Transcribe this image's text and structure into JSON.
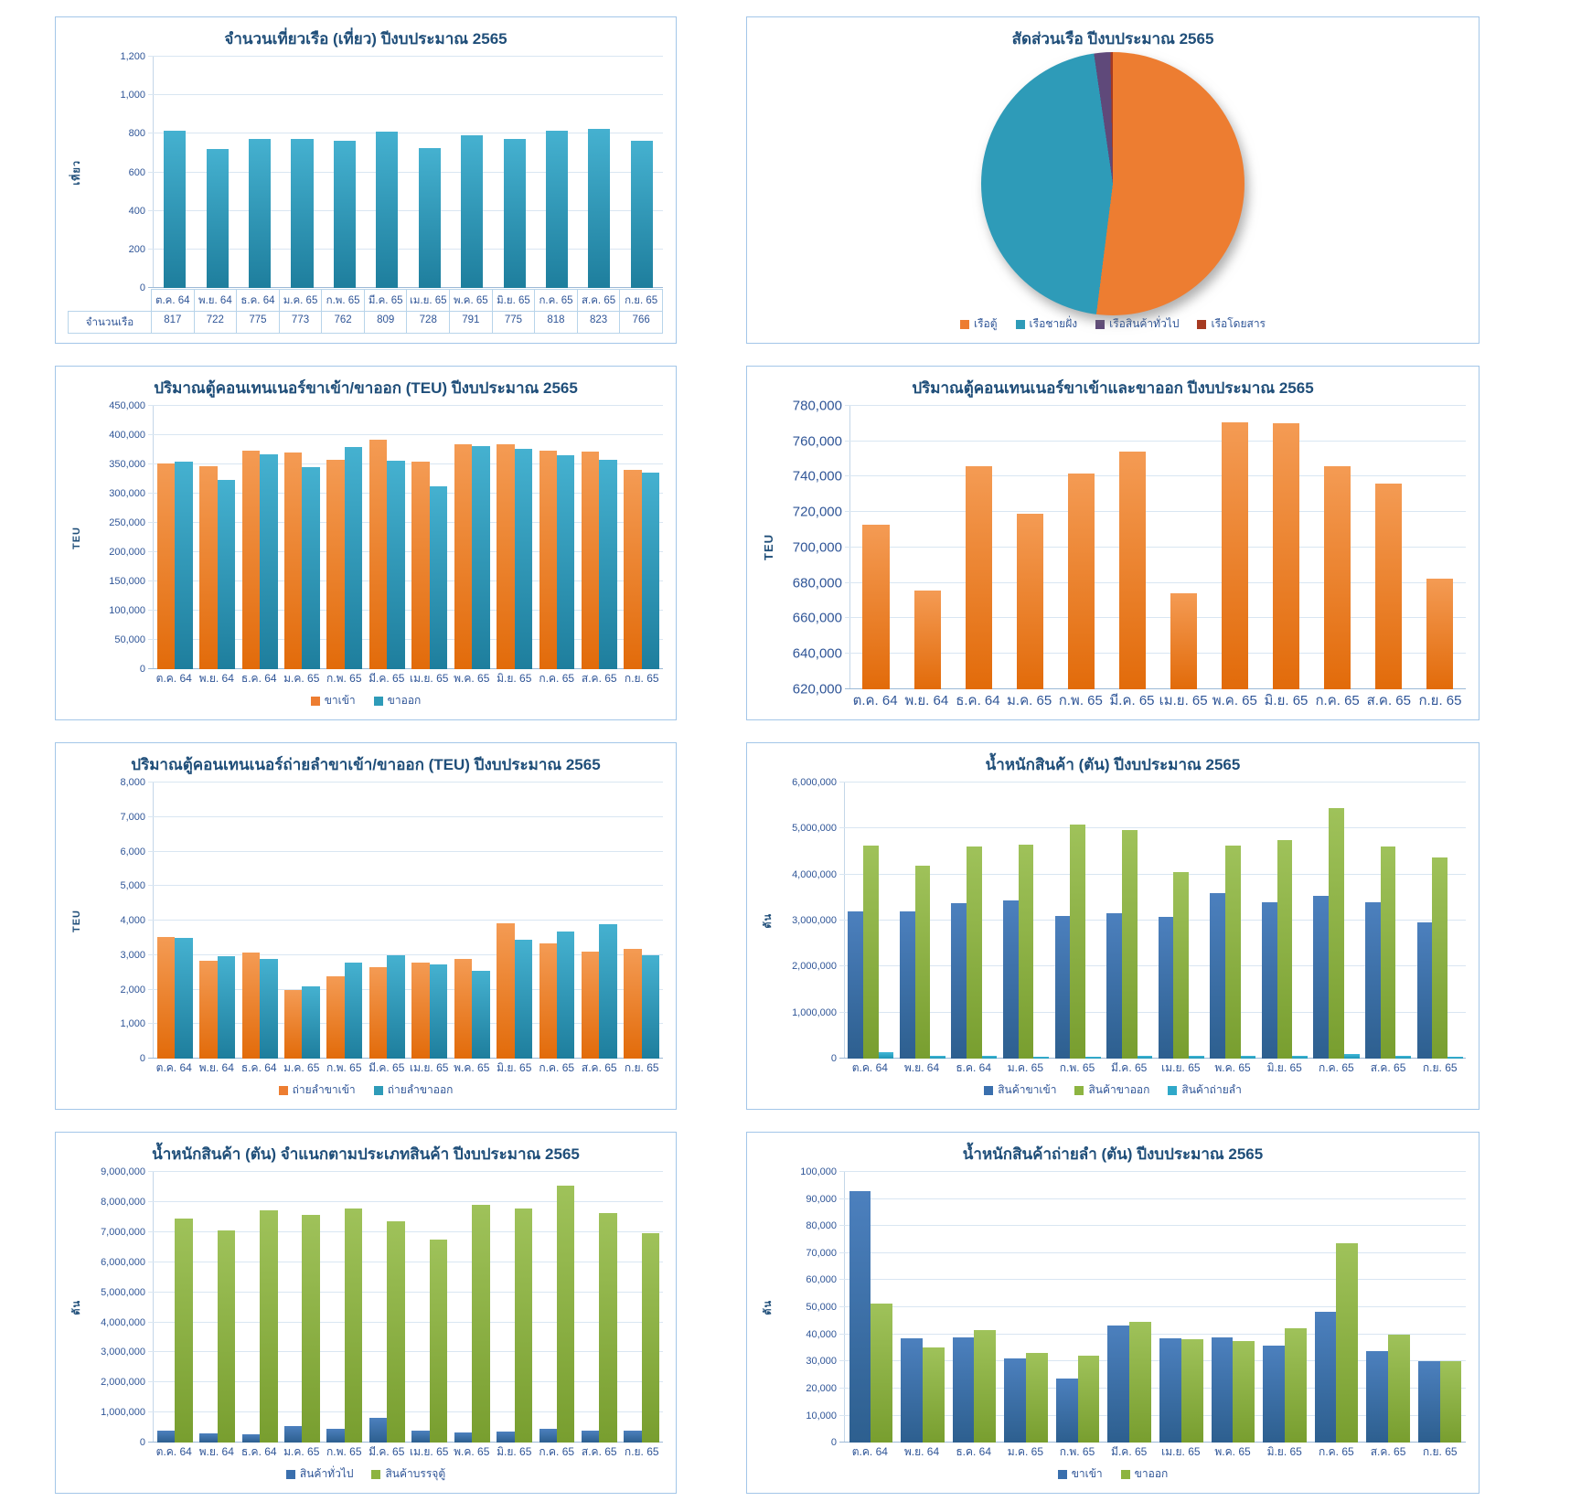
{
  "colors": {
    "accent_orange": "#ED7D31",
    "accent_teal": "#2E9BB8",
    "accent_blue": "#3A6FAD",
    "accent_green": "#8DB441",
    "accent_cyan": "#2FA8C9",
    "accent_purple": "#5F497A",
    "accent_dark_red": "#A63A21",
    "title_text": "#1F4E79",
    "axis_text": "#2F5597",
    "gridline": "#D9E6F2",
    "panel_border": "#A3C6E8"
  },
  "chart_data": [
    {
      "id": "ship-trips",
      "type": "bar",
      "title": "จำนวนเที่ยวเรือ (เที่ยว) ปีงบประมาณ 2565",
      "ylabel": "เที่ยว",
      "ylim": [
        0,
        1200
      ],
      "ystep": 200,
      "grid": true,
      "show_table": true,
      "show_legend": false,
      "categories": [
        "ต.ค. 64",
        "พ.ย. 64",
        "ธ.ค. 64",
        "ม.ค. 65",
        "ก.พ. 65",
        "มี.ค. 65",
        "เม.ย. 65",
        "พ.ค. 65",
        "มิ.ย. 65",
        "ก.ค. 65",
        "ส.ค. 65",
        "ก.ย. 65"
      ],
      "series": [
        {
          "name": "จำนวนเรือ",
          "color_key": "teal",
          "values": [
            817,
            722,
            775,
            773,
            762,
            809,
            728,
            791,
            775,
            818,
            823,
            766
          ]
        }
      ]
    },
    {
      "id": "ship-share",
      "type": "pie",
      "title": "สัดส่วนเรือ ปีงบประมาณ 2565",
      "legend_position": "bottom",
      "slices": [
        {
          "label": "เรือตู้",
          "color": "#ED7D31",
          "pct": 52.0
        },
        {
          "label": "เรือชายฝั่ง",
          "color": "#2E9BB8",
          "pct": 45.7
        },
        {
          "label": "เรือสินค้าทั่วไป",
          "color": "#5F497A",
          "pct": 2.0
        },
        {
          "label": "เรือโดยสาร",
          "color": "#A63A21",
          "pct": 0.3
        }
      ]
    },
    {
      "id": "teu-in-out",
      "type": "bar",
      "title": "ปริมาณตู้คอนเทนเนอร์ขาเข้า/ขาออก (TEU) ปีงบประมาณ 2565",
      "ylabel": "TEU",
      "ylim": [
        0,
        450000
      ],
      "ystep": 50000,
      "grid": true,
      "show_legend": true,
      "categories": [
        "ต.ค. 64",
        "พ.ย. 64",
        "ธ.ค. 64",
        "ม.ค. 65",
        "ก.พ. 65",
        "มี.ค. 65",
        "เม.ย. 65",
        "พ.ค. 65",
        "มิ.ย. 65",
        "ก.ค. 65",
        "ส.ค. 65",
        "ก.ย. 65"
      ],
      "series": [
        {
          "name": "ขาเข้า",
          "color_key": "orange",
          "values": [
            352000,
            347000,
            374000,
            370000,
            358000,
            392000,
            355000,
            385000,
            385000,
            374000,
            372000,
            340000
          ]
        },
        {
          "name": "ขาออก",
          "color_key": "teal",
          "values": [
            354000,
            324000,
            367000,
            345000,
            379000,
            357000,
            313000,
            381000,
            377000,
            365000,
            358000,
            336000
          ]
        }
      ]
    },
    {
      "id": "teu-total",
      "type": "bar",
      "title": "ปริมาณตู้คอนเทนเนอร์ขาเข้าและขาออก ปีงบประมาณ 2565",
      "ylabel": "TEU",
      "ylim": [
        620000,
        780000
      ],
      "ystep": 20000,
      "grid": true,
      "big_labels": true,
      "show_legend": false,
      "categories": [
        "ต.ค. 64",
        "พ.ย. 64",
        "ธ.ค. 64",
        "ม.ค. 65",
        "ก.พ. 65",
        "มี.ค. 65",
        "เม.ย. 65",
        "พ.ค. 65",
        "มิ.ย. 65",
        "ก.ค. 65",
        "ส.ค. 65",
        "ก.ย. 65"
      ],
      "series": [
        {
          "name": "",
          "color_key": "orange",
          "values": [
            713000,
            675500,
            746000,
            719000,
            742000,
            754000,
            674000,
            770500,
            770000,
            746000,
            736000,
            682500
          ]
        }
      ]
    },
    {
      "id": "transship-teu",
      "type": "bar",
      "title": "ปริมาณตู้คอนเทนเนอร์ถ่ายลำขาเข้า/ขาออก (TEU) ปีงบประมาณ 2565",
      "ylabel": "TEU",
      "ylim": [
        0,
        8000
      ],
      "ystep": 1000,
      "grid": true,
      "show_legend": true,
      "categories": [
        "ต.ค. 64",
        "พ.ย. 64",
        "ธ.ค. 64",
        "ม.ค. 65",
        "ก.พ. 65",
        "มี.ค. 65",
        "เม.ย. 65",
        "พ.ค. 65",
        "มิ.ย. 65",
        "ก.ค. 65",
        "ส.ค. 65",
        "ก.ย. 65"
      ],
      "series": [
        {
          "name": "ถ่ายลำขาเข้า",
          "color_key": "orange",
          "values": [
            3530,
            2850,
            3080,
            2000,
            2400,
            2640,
            2790,
            2880,
            3920,
            3330,
            3110,
            3170
          ]
        },
        {
          "name": "ถ่ายลำขาออก",
          "color_key": "teal",
          "values": [
            3500,
            2970,
            2880,
            2090,
            2790,
            3000,
            2730,
            2560,
            3450,
            3680,
            3910,
            3000
          ]
        }
      ]
    },
    {
      "id": "cargo-weight",
      "type": "bar",
      "title": "น้ำหนักสินค้า (ตัน) ปีงบประมาณ 2565",
      "ylabel": "ตัน",
      "ylim": [
        0,
        6000000
      ],
      "ystep": 1000000,
      "grid": true,
      "show_legend": true,
      "categories": [
        "ต.ค. 64",
        "พ.ย. 64",
        "ธ.ค. 64",
        "ม.ค. 65",
        "ก.พ. 65",
        "มี.ค. 65",
        "เม.ย. 65",
        "พ.ค. 65",
        "มิ.ย. 65",
        "ก.ค. 65",
        "ส.ค. 65",
        "ก.ย. 65"
      ],
      "series": [
        {
          "name": "สินค้าขาเข้า",
          "color_key": "blue",
          "values": [
            3200000,
            3200000,
            3380000,
            3440000,
            3110000,
            3170000,
            3090000,
            3600000,
            3400000,
            3540000,
            3400000,
            2960000
          ]
        },
        {
          "name": "สินค้าขาออก",
          "color_key": "green",
          "values": [
            4630000,
            4190000,
            4610000,
            4650000,
            5090000,
            4960000,
            4050000,
            4630000,
            4740000,
            5440000,
            4610000,
            4370000
          ]
        },
        {
          "name": "สินค้าถ่ายลำ",
          "color_key": "cyan",
          "values": [
            140000,
            70000,
            70000,
            50000,
            50000,
            70000,
            70000,
            70000,
            70000,
            110000,
            70000,
            40000
          ]
        }
      ]
    },
    {
      "id": "cargo-by-type",
      "type": "bar",
      "title": "น้ำหนักสินค้า (ตัน) จำแนกตามประเภทสินค้า ปีงบประมาณ 2565",
      "ylabel": "ตัน",
      "ylim": [
        0,
        9000000
      ],
      "ystep": 1000000,
      "grid": true,
      "show_legend": true,
      "categories": [
        "ต.ค. 64",
        "พ.ย. 64",
        "ธ.ค. 64",
        "ม.ค. 65",
        "ก.พ. 65",
        "มี.ค. 65",
        "เม.ย. 65",
        "พ.ค. 65",
        "มิ.ย. 65",
        "ก.ค. 65",
        "ส.ค. 65",
        "ก.ย. 65"
      ],
      "series": [
        {
          "name": "สินค้าทั่วไป",
          "color_key": "blue",
          "values": [
            390000,
            320000,
            290000,
            550000,
            460000,
            820000,
            400000,
            330000,
            360000,
            460000,
            400000,
            400000
          ]
        },
        {
          "name": "สินค้าบรรจุตู้",
          "color_key": "green",
          "values": [
            7450000,
            7050000,
            7720000,
            7560000,
            7790000,
            7360000,
            6750000,
            7920000,
            7790000,
            8540000,
            7620000,
            6950000
          ]
        }
      ]
    },
    {
      "id": "transship-weight",
      "type": "bar",
      "title": "น้ำหนักสินค้าถ่ายลำ (ตัน) ปีงบประมาณ 2565",
      "ylabel": "ตัน",
      "ylim": [
        0,
        100000
      ],
      "ystep": 10000,
      "grid": true,
      "show_legend": true,
      "categories": [
        "ต.ค. 64",
        "พ.ย. 64",
        "ธ.ค. 64",
        "ม.ค. 65",
        "ก.พ. 65",
        "มี.ค. 65",
        "เม.ย. 65",
        "พ.ค. 65",
        "มิ.ย. 65",
        "ก.ค. 65",
        "ส.ค. 65",
        "ก.ย. 65"
      ],
      "series": [
        {
          "name": "ขาเข้า",
          "color_key": "blue",
          "values": [
            93000,
            38500,
            39000,
            31200,
            23800,
            43300,
            38600,
            39000,
            36000,
            48200,
            33800,
            30200
          ]
        },
        {
          "name": "ขาออก",
          "color_key": "green",
          "values": [
            51500,
            35300,
            41500,
            33000,
            32000,
            44800,
            38200,
            37500,
            42300,
            73800,
            40000,
            30200
          ]
        }
      ]
    }
  ]
}
